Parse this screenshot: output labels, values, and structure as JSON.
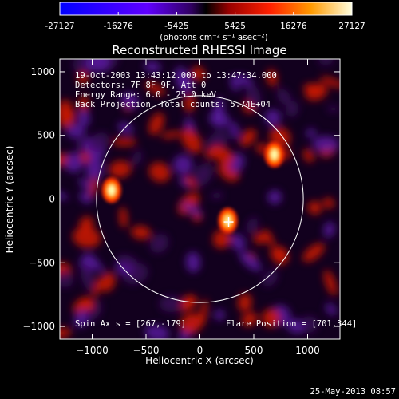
{
  "colorbar": {
    "ticks": [
      "-27127",
      "-16276",
      "-5425",
      "5425",
      "16276",
      "27127"
    ],
    "units": "(photons cm⁻² s⁻¹ asec⁻²)"
  },
  "title": "Reconstructed RHESSI Image",
  "info": {
    "time": "19-Oct-2003 13:43:12.000 to 13:47:34.000",
    "detectors": "Detectors: 7F 8F 9F, Att 0",
    "energy": "Energy Range: 6.0 - 25.0 keV",
    "method": "Back Projection",
    "counts": "Total counts: 5.74E+04"
  },
  "footer_left": "Spin Axis = [267,-179]",
  "footer_right": "Flare Position = [701,344]",
  "timestamp": "25-May-2013 08:57",
  "chart_data": {
    "type": "heatmap",
    "title": "Reconstructed RHESSI Image",
    "xlabel": "Heliocentric X (arcsec)",
    "ylabel": "Heliocentric Y (arcsec)",
    "xlim": [
      -1300,
      1300
    ],
    "ylim": [
      -1100,
      1100
    ],
    "xticks": [
      -1000,
      -500,
      0,
      500,
      1000
    ],
    "yticks": [
      -1000,
      -500,
      0,
      500,
      1000
    ],
    "xtick_labels": [
      "−1000",
      "−500",
      "0",
      "500",
      "1000"
    ],
    "ytick_labels": [
      "−1000",
      "−500",
      "0",
      "500",
      "1000"
    ],
    "value_range": [
      -27127,
      27127
    ],
    "colormap": [
      "#0000ff",
      "#5a00ff",
      "#9a00ff",
      "#3a006a",
      "#ff2000",
      "#ff9000",
      "#ffff80",
      "#ffffff"
    ],
    "solar_limb_radius": 960,
    "bright_sources": [
      {
        "x": -820,
        "y": 70,
        "level": 1.0
      },
      {
        "x": 690,
        "y": 350,
        "level": 0.95
      },
      {
        "x": 260,
        "y": -170,
        "level": 0.8
      }
    ],
    "marker": {
      "x": 267,
      "y": -179
    }
  }
}
